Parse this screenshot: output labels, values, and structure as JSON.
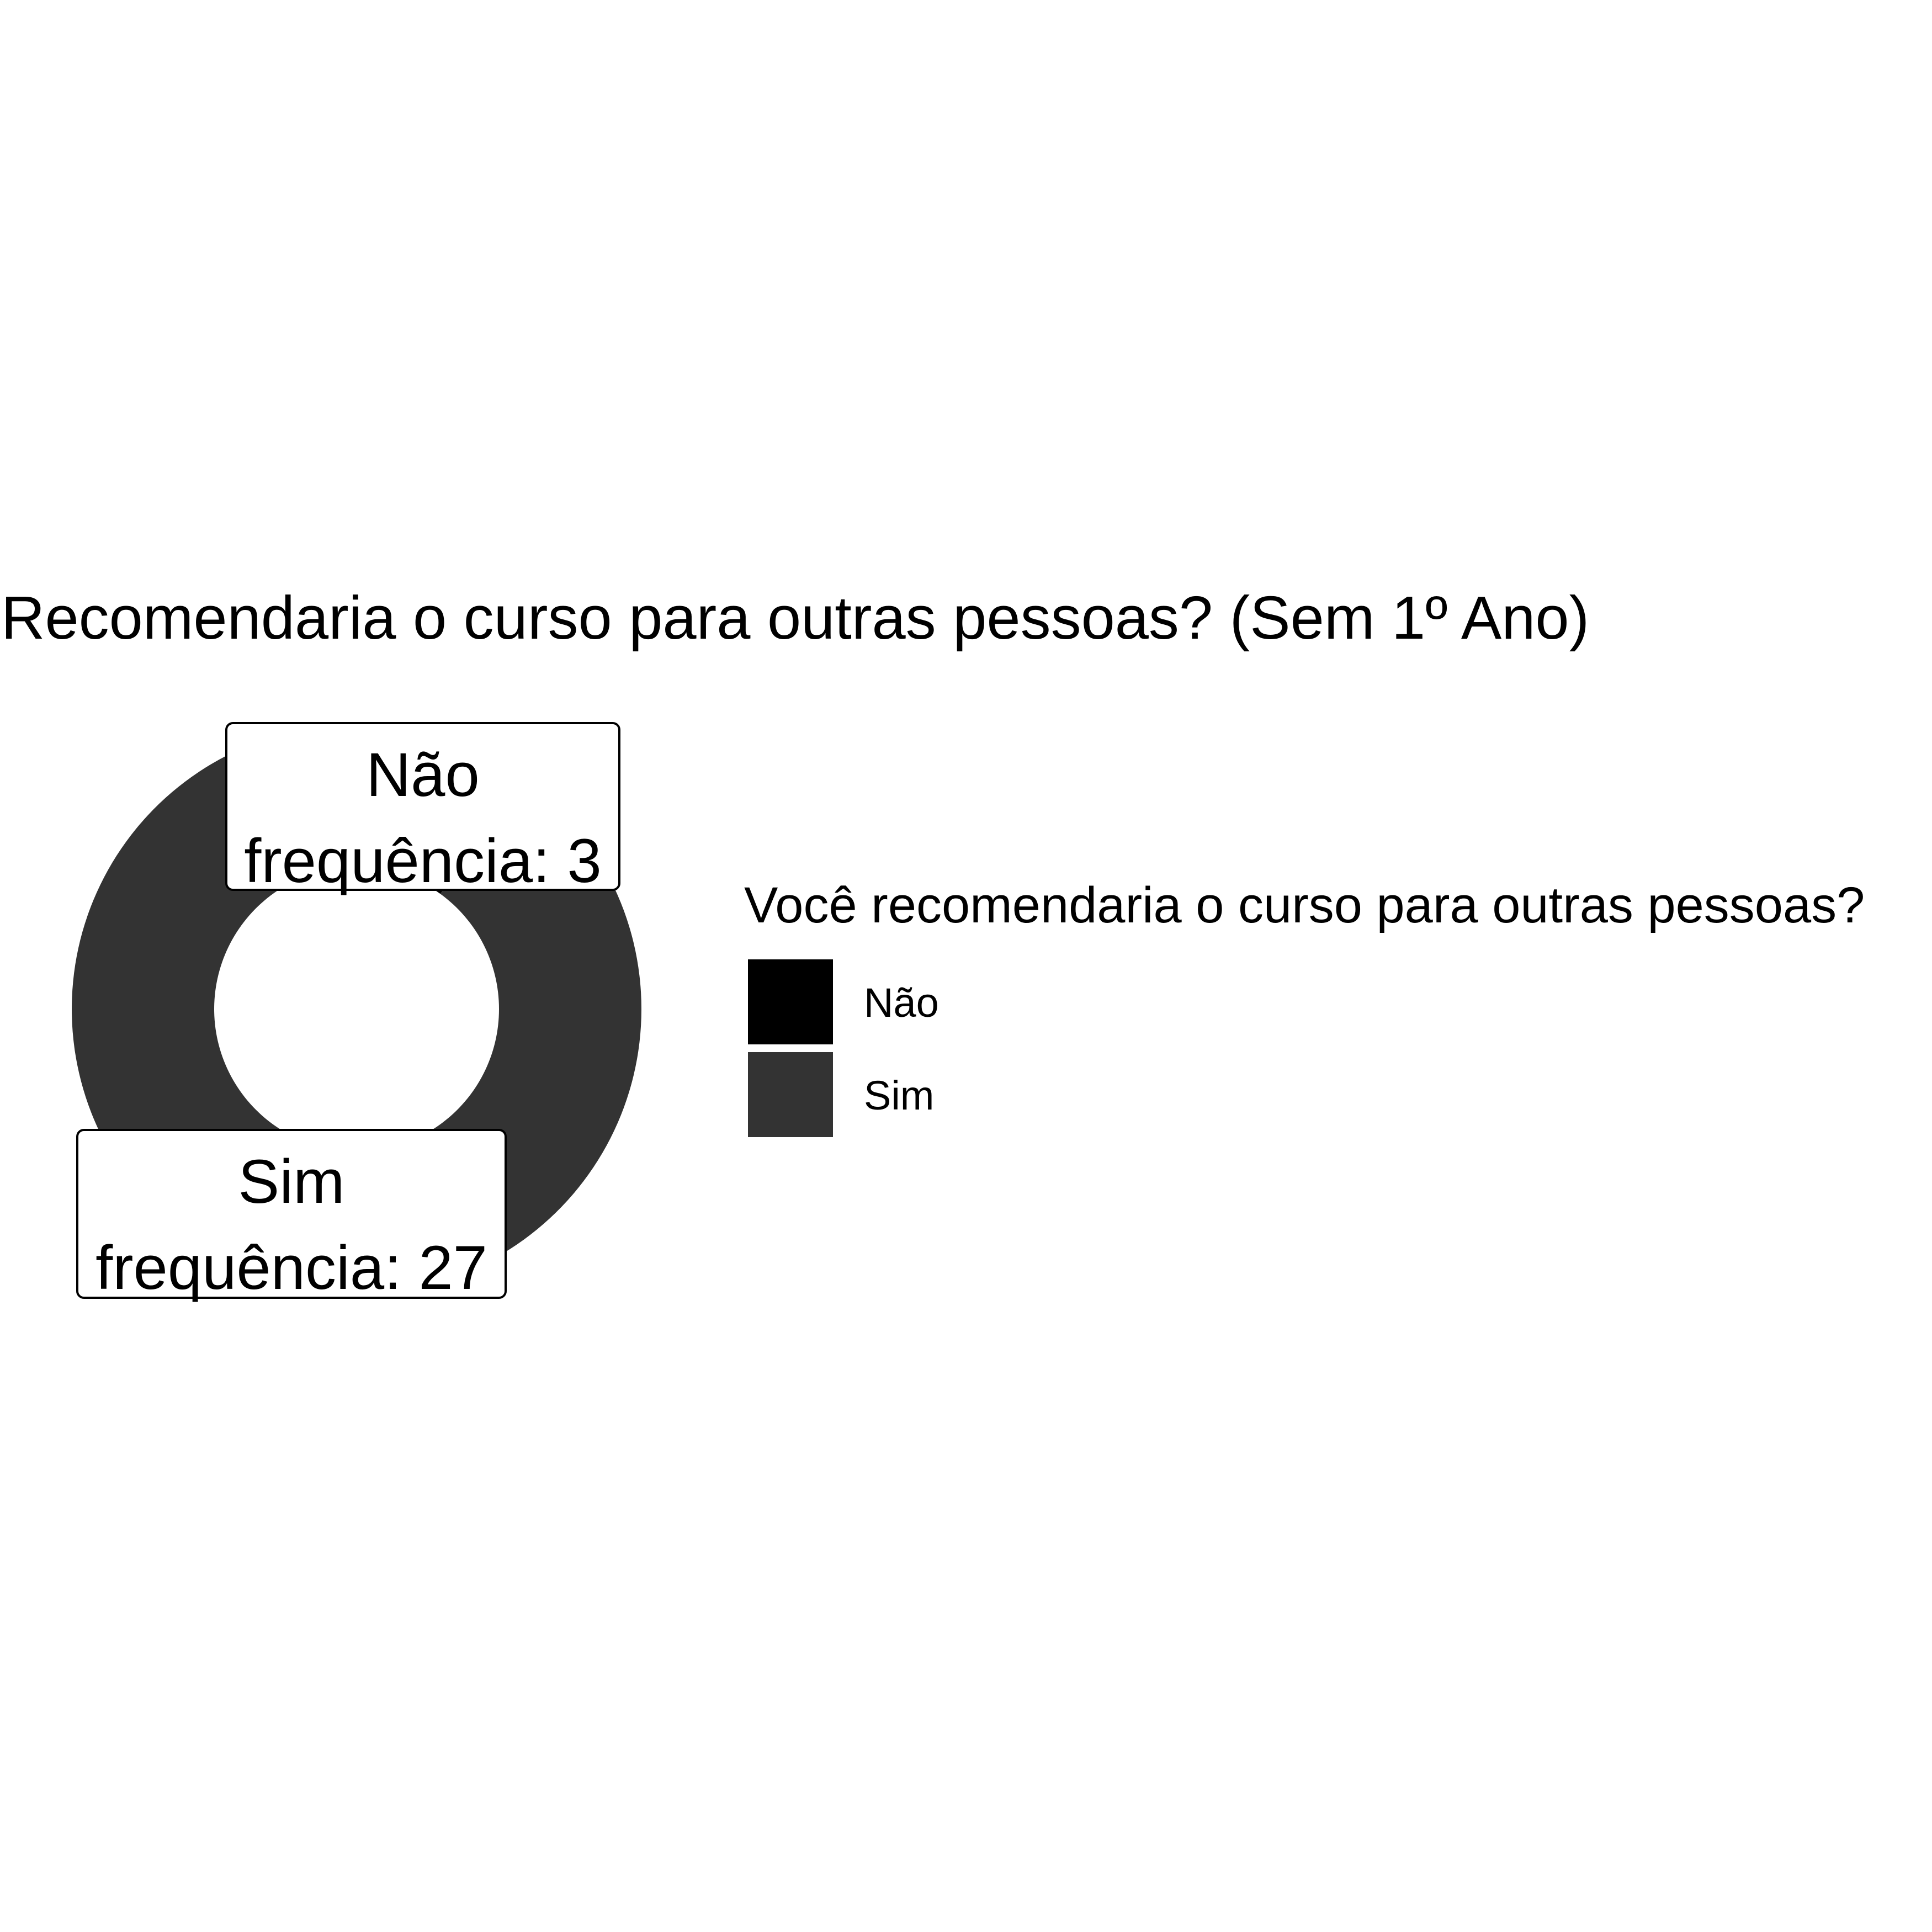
{
  "chart_data": {
    "type": "pie",
    "title": "Recomendaria o curso para outras pessoas? (Sem 1º Ano)",
    "categories": [
      "Não",
      "Sim"
    ],
    "values": [
      3,
      27
    ],
    "colors": [
      "#000000",
      "#333333"
    ],
    "donut": true,
    "slice_labels": [
      {
        "category": "Não",
        "text": "frequência: 3"
      },
      {
        "category": "Sim",
        "text": "frequência: 27"
      }
    ],
    "legend": {
      "title": "Você recomendaria o curso para outras pessoas?",
      "placement": "right",
      "entries": [
        {
          "label": "Não",
          "color": "#000000"
        },
        {
          "label": "Sim",
          "color": "#333333"
        }
      ]
    }
  }
}
